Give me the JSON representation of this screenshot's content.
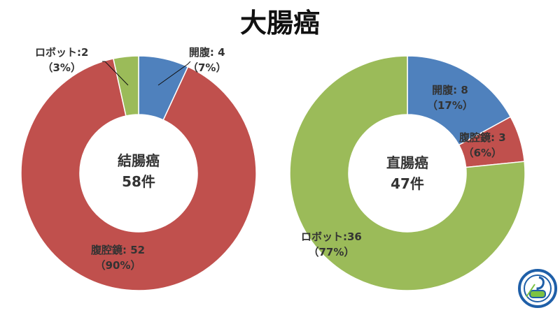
{
  "title": "大腸癌",
  "colors": {
    "開腹": "#4f81bd",
    "腹腔鏡": "#c0504d",
    "ロボット": "#9bbb59"
  },
  "chart_data": [
    {
      "type": "donut",
      "center_label": "結腸癌",
      "center_count": "58件",
      "categories": [
        "開腹",
        "腹腔鏡",
        "ロボット"
      ],
      "values": [
        4,
        52,
        2
      ],
      "data_labels": [
        {
          "name": "開腹: 4",
          "pct": "（7%）"
        },
        {
          "name": "腹腔鏡: 52",
          "pct": "（90%）"
        },
        {
          "name": "ロボット:2",
          "pct": "（3%）"
        }
      ]
    },
    {
      "type": "donut",
      "center_label": "直腸癌",
      "center_count": "47件",
      "categories": [
        "開腹",
        "腹腔鏡",
        "ロボット"
      ],
      "values": [
        8,
        3,
        36
      ],
      "data_labels": [
        {
          "name": "開腹: 8",
          "pct": "（17%）"
        },
        {
          "name": "腹腔鏡: 3",
          "pct": "（6%）"
        },
        {
          "name": "ロボット:36",
          "pct": "（77%）"
        }
      ]
    }
  ],
  "logo": {
    "icon": "society-seal-logo"
  }
}
